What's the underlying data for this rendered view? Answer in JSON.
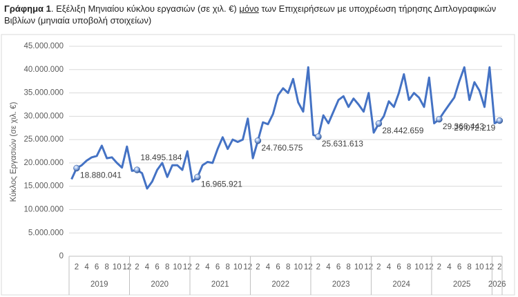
{
  "chart_data": {
    "type": "line",
    "title": [
      "Γράφημα 1",
      ". Εξέλιξη Μηνιαίου κύκλου εργασιών (σε χιλ. €) ",
      "μόνο",
      " των Επιχειρήσεων με υποχρέωση τήρησης Διπλογραφικών Βιβλίων (μηνιαία υποβολή στοιχείων)"
    ],
    "ylabel": "Κύκλος Εργασιών (σε χιλ. €)",
    "categories": [
      null,
      "2",
      null,
      "4",
      null,
      "6",
      null,
      "8",
      null,
      "10",
      null,
      "12",
      null,
      "2",
      null,
      "4",
      null,
      "6",
      null,
      "8",
      null,
      "10",
      null,
      "12",
      null,
      "2",
      null,
      "4",
      null,
      "6",
      null,
      "8",
      null,
      "10",
      null,
      "12",
      null,
      "2",
      null,
      "4",
      null,
      "6",
      null,
      "8",
      null,
      "10",
      null,
      "12",
      null,
      "2",
      null,
      "4",
      null,
      "6",
      null,
      "8",
      null,
      "10",
      null,
      "12",
      null,
      "2",
      null,
      "4",
      null,
      "6",
      null,
      "8",
      null,
      "10",
      null,
      "12",
      null,
      "2",
      null,
      "4",
      null,
      "6",
      null,
      "8",
      null,
      "10",
      null,
      "12",
      null,
      "2"
    ],
    "years": [
      "2019",
      "2020",
      "2021",
      "2022",
      "2023",
      "2024",
      "2025",
      "2026"
    ],
    "color": "#4472c4",
    "values": [
      16500000,
      18880041,
      19500000,
      20500000,
      21200000,
      21500000,
      23700000,
      21000000,
      21200000,
      20000000,
      19000000,
      23500000,
      18300000,
      18495184,
      17800000,
      14500000,
      16000000,
      18500000,
      20000000,
      17000000,
      19500000,
      19500000,
      18500000,
      22500000,
      16000000,
      16965921,
      19500000,
      20200000,
      20000000,
      23000000,
      25500000,
      23000000,
      25000000,
      24500000,
      25000000,
      29500000,
      21000000,
      24760575,
      28700000,
      28300000,
      30500000,
      34500000,
      36000000,
      35000000,
      38000000,
      33000000,
      31000000,
      40500000,
      26000000,
      25631613,
      30200000,
      28500000,
      31000000,
      33500000,
      34300000,
      32000000,
      33800000,
      32500000,
      31000000,
      35000000,
      26500000,
      28442659,
      30000000,
      33200000,
      32000000,
      35000000,
      39000000,
      33500000,
      35000000,
      34000000,
      32000000,
      38300000,
      28500000,
      29366443,
      31000000,
      32500000,
      34000000,
      37500000,
      40500000,
      33500000,
      37300000,
      35500000,
      32000000,
      40500000,
      28500000,
      29072219
    ],
    "value_labels": [
      null,
      "18.880.041",
      null,
      null,
      null,
      null,
      null,
      null,
      null,
      null,
      null,
      null,
      null,
      "18.495.184",
      null,
      null,
      null,
      null,
      null,
      null,
      null,
      null,
      null,
      null,
      null,
      "16.965.921",
      null,
      null,
      null,
      null,
      null,
      null,
      null,
      null,
      null,
      null,
      null,
      "24.760.575",
      null,
      null,
      null,
      null,
      null,
      null,
      null,
      null,
      null,
      null,
      null,
      "25.631.613",
      null,
      null,
      null,
      null,
      null,
      null,
      null,
      null,
      null,
      null,
      null,
      "28.442.659",
      null,
      null,
      null,
      null,
      null,
      null,
      null,
      null,
      null,
      null,
      null,
      "29.366.443",
      null,
      null,
      null,
      null,
      null,
      null,
      null,
      null,
      null,
      null,
      null,
      "29.072.219"
    ],
    "ylim": [
      0,
      45000000
    ],
    "yticks": [
      {
        "value": 0,
        "label": "0"
      },
      {
        "value": 5000000,
        "label": "5.000.000"
      },
      {
        "value": 10000000,
        "label": "10.000.000"
      },
      {
        "value": 15000000,
        "label": "15.000.000"
      },
      {
        "value": 20000000,
        "label": "20.000.000"
      },
      {
        "value": 25000000,
        "label": "25.000.000"
      },
      {
        "value": 30000000,
        "label": "30.000.000"
      },
      {
        "value": 35000000,
        "label": "35.000.000"
      },
      {
        "value": 40000000,
        "label": "40.000.000"
      },
      {
        "value": 45000000,
        "label": "45.000.000"
      }
    ],
    "grid": true
  }
}
